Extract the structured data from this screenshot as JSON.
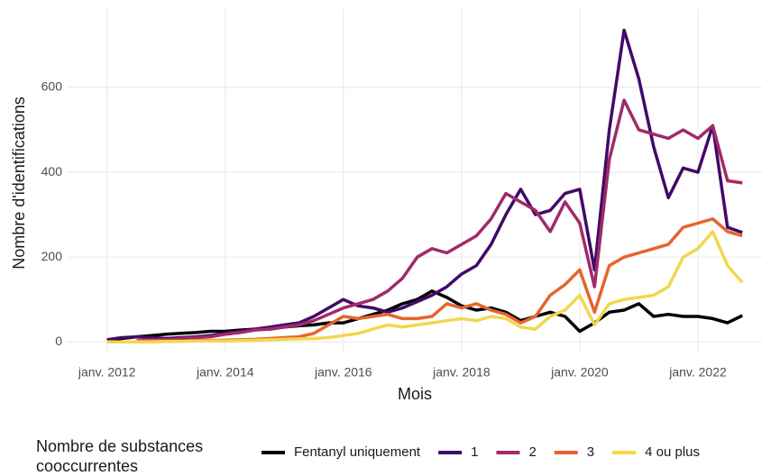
{
  "chart_data": {
    "type": "line",
    "x_label": "Mois",
    "y_label": "Nombre d'identifications",
    "legend_title": [
      "Nombre de substances",
      "cooccurrentes"
    ],
    "legend": "bottom",
    "grid": true,
    "x": [
      "2012-01",
      "2012-04",
      "2012-07",
      "2012-10",
      "2013-01",
      "2013-04",
      "2013-07",
      "2013-10",
      "2014-01",
      "2014-04",
      "2014-07",
      "2014-10",
      "2015-01",
      "2015-04",
      "2015-07",
      "2015-10",
      "2016-01",
      "2016-04",
      "2016-07",
      "2016-10",
      "2017-01",
      "2017-04",
      "2017-07",
      "2017-10",
      "2018-01",
      "2018-04",
      "2018-07",
      "2018-10",
      "2019-01",
      "2019-04",
      "2019-07",
      "2019-10",
      "2020-01",
      "2020-04",
      "2020-07",
      "2020-10",
      "2021-01",
      "2021-04",
      "2021-07",
      "2021-10",
      "2022-01",
      "2022-04",
      "2022-07",
      "2022-10"
    ],
    "xlim": [
      "2011-05",
      "2023-02"
    ],
    "xticks": [
      {
        "value": "2012-01",
        "label": "janv. 2012"
      },
      {
        "value": "2014-01",
        "label": "janv. 2014"
      },
      {
        "value": "2016-01",
        "label": "janv. 2016"
      },
      {
        "value": "2018-01",
        "label": "janv. 2018"
      },
      {
        "value": "2020-01",
        "label": "janv. 2020"
      },
      {
        "value": "2022-01",
        "label": "janv. 2022"
      }
    ],
    "ylim": [
      -25,
      785
    ],
    "yticks": [
      0,
      200,
      400,
      600
    ],
    "series": [
      {
        "name": "Fentanyl uniquement",
        "color": "#000004",
        "values": [
          5,
          8,
          12,
          15,
          18,
          20,
          22,
          25,
          25,
          28,
          30,
          30,
          35,
          38,
          40,
          45,
          45,
          55,
          65,
          75,
          90,
          100,
          120,
          105,
          85,
          75,
          80,
          70,
          50,
          60,
          70,
          60,
          25,
          45,
          70,
          75,
          90,
          60,
          65,
          60,
          60,
          55,
          45,
          62
        ]
      },
      {
        "name": "1",
        "color": "#420a68",
        "values": [
          5,
          10,
          12,
          10,
          8,
          10,
          12,
          15,
          20,
          25,
          30,
          35,
          40,
          45,
          60,
          80,
          100,
          85,
          80,
          70,
          80,
          95,
          110,
          130,
          160,
          180,
          230,
          300,
          360,
          300,
          310,
          350,
          360,
          170,
          500,
          735,
          620,
          460,
          340,
          410,
          400,
          510,
          270,
          258
        ]
      },
      {
        "name": "2",
        "color": "#a12a6a",
        "values": [
          null,
          null,
          3,
          5,
          5,
          8,
          10,
          12,
          18,
          22,
          28,
          30,
          35,
          40,
          50,
          65,
          80,
          90,
          100,
          120,
          150,
          200,
          220,
          210,
          230,
          250,
          290,
          350,
          330,
          310,
          260,
          330,
          280,
          130,
          430,
          570,
          500,
          490,
          480,
          500,
          480,
          510,
          380,
          375
        ]
      },
      {
        "name": "3",
        "color": "#e5652d",
        "values": [
          null,
          null,
          2,
          2,
          2,
          2,
          3,
          3,
          4,
          5,
          6,
          8,
          10,
          12,
          20,
          40,
          60,
          55,
          60,
          65,
          55,
          55,
          60,
          90,
          80,
          90,
          75,
          65,
          45,
          60,
          110,
          135,
          170,
          70,
          180,
          200,
          210,
          220,
          230,
          270,
          280,
          290,
          260,
          250
        ]
      },
      {
        "name": "4 ou plus",
        "color": "#f2d74e",
        "values": [
          0,
          0,
          0,
          0,
          1,
          1,
          2,
          2,
          2,
          3,
          4,
          5,
          6,
          7,
          8,
          10,
          15,
          20,
          30,
          40,
          35,
          40,
          45,
          50,
          55,
          50,
          60,
          55,
          35,
          30,
          60,
          75,
          110,
          40,
          90,
          100,
          105,
          110,
          130,
          200,
          220,
          260,
          180,
          140
        ]
      }
    ]
  }
}
